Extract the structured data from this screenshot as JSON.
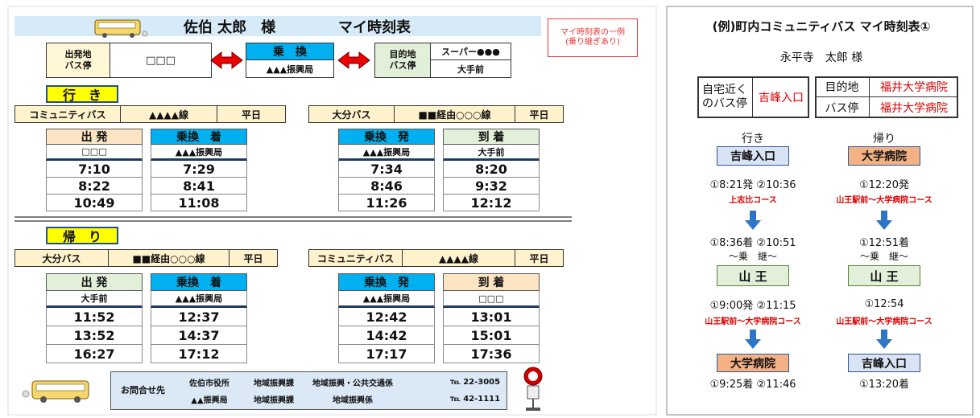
{
  "left": {
    "header": {
      "name": "佐伯 太郎　様",
      "title": "マイ時刻表",
      "note": [
        "マイ時刻表の一例",
        "(乗り継ぎあり)"
      ]
    },
    "route": {
      "origin_label": [
        "出発地",
        "バス停"
      ],
      "origin": "□□□",
      "transfer_label": "乗　換",
      "transfer": "▲▲▲振興局",
      "dest_label": [
        "目的地",
        "バス停"
      ],
      "dest": [
        "スーパー●●●",
        "大手前"
      ]
    },
    "outbound": {
      "heading": "行　き",
      "legs": [
        {
          "company": "コミュニティバス",
          "line": "▲▲▲▲線",
          "day": "平日",
          "columns": [
            {
              "header": "出 発",
              "stop": "□□□",
              "times": [
                "7:10",
                "8:22",
                "10:49"
              ]
            },
            {
              "header": "乗換　着",
              "stop": "▲▲▲振興局",
              "times": [
                "7:29",
                "8:41",
                "11:08"
              ]
            }
          ]
        },
        {
          "company": "大分バス",
          "line": "■■経由○○○線",
          "day": "平日",
          "columns": [
            {
              "header": "乗換　発",
              "stop": "▲▲▲振興局",
              "times": [
                "7:34",
                "8:46",
                "11:26"
              ]
            },
            {
              "header": "到 着",
              "stop": "大手前",
              "times": [
                "8:20",
                "9:32",
                "12:12"
              ]
            }
          ]
        }
      ]
    },
    "return": {
      "heading": "帰　り",
      "legs": [
        {
          "company": "大分バス",
          "line": "■■経由○○○線",
          "day": "平日",
          "columns": [
            {
              "header": "出 発",
              "stop": "大手前",
              "times": [
                "11:52",
                "13:52",
                "16:27"
              ]
            },
            {
              "header": "乗換　着",
              "stop": "▲▲▲振興局",
              "times": [
                "12:37",
                "14:37",
                "17:12"
              ]
            }
          ]
        },
        {
          "company": "コミュニティバス",
          "line": "▲▲▲▲線",
          "day": "平日",
          "columns": [
            {
              "header": "乗換　発",
              "stop": "▲▲▲振興局",
              "times": [
                "12:42",
                "14:42",
                "17:17"
              ]
            },
            {
              "header": "到 着",
              "stop": "□□□",
              "times": [
                "13:01",
                "15:01",
                "17:36"
              ]
            }
          ]
        }
      ]
    },
    "contact": {
      "label": "お問合せ先",
      "rows": [
        [
          "佐伯市役所",
          "地域振興課",
          "地域振興・公共交通係",
          "℡ 22-3005"
        ],
        [
          "▲▲振興局",
          "地域振興課",
          "地域振興係",
          "℡ 42-1111"
        ]
      ]
    }
  },
  "right": {
    "title": "(例)町内コミュニティバス マイ時刻表①",
    "name": "永平寺　太郎 様",
    "home": {
      "label": [
        "自宅近く",
        "のバス停"
      ],
      "value": "吉峰入口"
    },
    "destination": {
      "label": "目的地",
      "value": "福井大学病院",
      "stop_label": "バス停",
      "stop_value": "福井大学病院"
    },
    "routes": [
      {
        "heading": "行き",
        "start": "吉峰入口",
        "depart": "①8:21発 ②10:36",
        "course1": "上志比コース",
        "arrive": "①8:36着 ②10:51",
        "transfer": "～乗　継～",
        "via": "山 王",
        "depart2": "①9:00発 ②11:15",
        "course2": "山王駅前～大学病院コース",
        "end": "大学病院",
        "arrive2": "①9:25着 ②11:46"
      },
      {
        "heading": "帰り",
        "start": "大学病院",
        "depart": "①12:20発",
        "course1": "山王駅前～大学病院コース",
        "arrive": "①12:51着",
        "transfer": "～乗　継～",
        "via": "山 王",
        "depart2": "①12:54",
        "course2": "山王駅前～大学病院コース",
        "end": "吉峰入口",
        "arrive2": "①13:20着"
      }
    ]
  }
}
